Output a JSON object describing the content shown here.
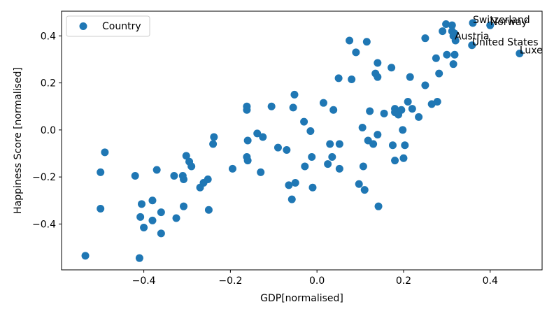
{
  "chart_data": {
    "type": "scatter",
    "xlabel": "GDP[normalised]",
    "ylabel": "Happiness Score [normalised]",
    "xlim": [
      -0.59,
      0.52
    ],
    "ylim": [
      -0.595,
      0.505
    ],
    "xticks": [
      -0.4,
      -0.2,
      0.0,
      0.2,
      0.4
    ],
    "yticks": [
      -0.4,
      -0.2,
      0.0,
      0.2,
      0.4
    ],
    "xtick_labels": [
      "−0.4",
      "−0.2",
      "0.0",
      "0.2",
      "0.4"
    ],
    "ytick_labels": [
      "−0.4",
      "−0.2",
      "0.0",
      "0.2",
      "0.4"
    ],
    "legend": {
      "position": "upper-left",
      "entries": [
        "Country"
      ]
    },
    "marker_color": "#1f77b4",
    "grid": false,
    "series": [
      {
        "name": "Country",
        "points": [
          [
            -0.535,
            -0.535
          ],
          [
            -0.49,
            -0.095
          ],
          [
            -0.5,
            -0.18
          ],
          [
            -0.5,
            -0.335
          ],
          [
            -0.42,
            -0.195
          ],
          [
            -0.405,
            -0.315
          ],
          [
            -0.408,
            -0.37
          ],
          [
            -0.41,
            -0.545
          ],
          [
            -0.4,
            -0.415
          ],
          [
            -0.38,
            -0.3
          ],
          [
            -0.38,
            -0.385
          ],
          [
            -0.37,
            -0.17
          ],
          [
            -0.36,
            -0.35
          ],
          [
            -0.36,
            -0.44
          ],
          [
            -0.33,
            -0.195
          ],
          [
            -0.325,
            -0.375
          ],
          [
            -0.31,
            -0.195
          ],
          [
            -0.308,
            -0.21
          ],
          [
            -0.308,
            -0.325
          ],
          [
            -0.302,
            -0.11
          ],
          [
            -0.295,
            -0.135
          ],
          [
            -0.29,
            -0.155
          ],
          [
            -0.27,
            -0.245
          ],
          [
            -0.262,
            -0.225
          ],
          [
            -0.252,
            -0.21
          ],
          [
            -0.25,
            -0.34
          ],
          [
            -0.24,
            -0.06
          ],
          [
            -0.238,
            -0.03
          ],
          [
            -0.195,
            -0.165
          ],
          [
            -0.162,
            0.085
          ],
          [
            -0.162,
            0.1
          ],
          [
            -0.162,
            -0.115
          ],
          [
            -0.16,
            -0.13
          ],
          [
            -0.16,
            -0.045
          ],
          [
            -0.138,
            -0.015
          ],
          [
            -0.13,
            -0.18
          ],
          [
            -0.125,
            -0.03
          ],
          [
            -0.105,
            0.1
          ],
          [
            -0.09,
            -0.075
          ],
          [
            -0.07,
            -0.085
          ],
          [
            -0.065,
            -0.235
          ],
          [
            -0.055,
            0.095
          ],
          [
            -0.052,
            0.15
          ],
          [
            -0.058,
            -0.295
          ],
          [
            -0.05,
            -0.225
          ],
          [
            -0.03,
            0.035
          ],
          [
            -0.028,
            -0.155
          ],
          [
            -0.015,
            -0.005
          ],
          [
            -0.012,
            -0.115
          ],
          [
            -0.01,
            -0.245
          ],
          [
            0.015,
            0.115
          ],
          [
            0.025,
            -0.145
          ],
          [
            0.03,
            -0.06
          ],
          [
            0.035,
            -0.115
          ],
          [
            0.038,
            0.085
          ],
          [
            0.05,
            0.22
          ],
          [
            0.052,
            -0.06
          ],
          [
            0.052,
            -0.165
          ],
          [
            0.075,
            0.38
          ],
          [
            0.08,
            0.215
          ],
          [
            0.09,
            0.33
          ],
          [
            0.097,
            -0.23
          ],
          [
            0.105,
            0.01
          ],
          [
            0.107,
            -0.155
          ],
          [
            0.11,
            -0.255
          ],
          [
            0.115,
            0.375
          ],
          [
            0.118,
            -0.045
          ],
          [
            0.122,
            0.08
          ],
          [
            0.13,
            -0.06
          ],
          [
            0.135,
            0.24
          ],
          [
            0.14,
            0.225
          ],
          [
            0.14,
            0.285
          ],
          [
            0.14,
            -0.02
          ],
          [
            0.142,
            -0.325
          ],
          [
            0.155,
            0.07
          ],
          [
            0.172,
            0.265
          ],
          [
            0.175,
            -0.065
          ],
          [
            0.18,
            0.09
          ],
          [
            0.18,
            0.075
          ],
          [
            0.18,
            -0.13
          ],
          [
            0.188,
            0.065
          ],
          [
            0.195,
            0.085
          ],
          [
            0.198,
            0.0
          ],
          [
            0.2,
            -0.12
          ],
          [
            0.203,
            -0.065
          ],
          [
            0.21,
            0.12
          ],
          [
            0.215,
            0.225
          ],
          [
            0.22,
            0.09
          ],
          [
            0.235,
            0.055
          ],
          [
            0.25,
            0.39
          ],
          [
            0.25,
            0.19
          ],
          [
            0.265,
            0.11
          ],
          [
            0.275,
            0.305
          ],
          [
            0.278,
            0.12
          ],
          [
            0.282,
            0.24
          ],
          [
            0.29,
            0.42
          ],
          [
            0.298,
            0.45
          ],
          [
            0.3,
            0.32
          ],
          [
            0.312,
            0.445
          ],
          [
            0.312,
            0.42
          ],
          [
            0.315,
            0.4
          ],
          [
            0.318,
            0.41
          ],
          [
            0.32,
            0.38
          ],
          [
            0.318,
            0.32
          ],
          [
            0.315,
            0.28
          ],
          [
            0.358,
            0.36
          ],
          [
            0.36,
            0.455
          ],
          [
            0.4,
            0.445
          ],
          [
            0.468,
            0.325
          ]
        ]
      }
    ],
    "annotations": [
      {
        "text": "Switzerland",
        "x": 0.36,
        "y": 0.455
      },
      {
        "text": "Norway",
        "x": 0.4,
        "y": 0.445
      },
      {
        "text": "Austria",
        "x": 0.318,
        "y": 0.385
      },
      {
        "text": "United States",
        "x": 0.358,
        "y": 0.36
      },
      {
        "text": "Luxembourg",
        "x": 0.468,
        "y": 0.325
      }
    ]
  }
}
